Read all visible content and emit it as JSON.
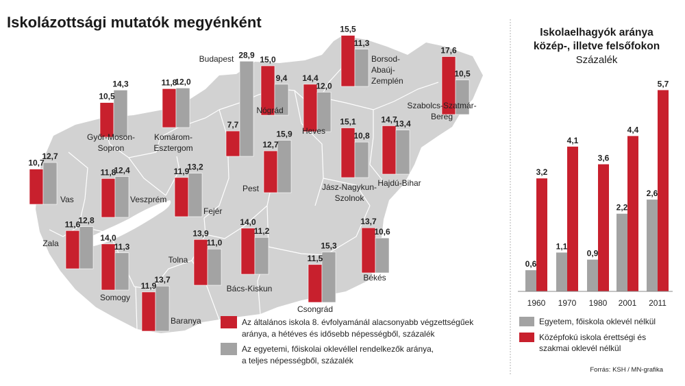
{
  "title": "Iskolázottsági mutatók megyénként",
  "colors": {
    "red": "#c8202d",
    "gray": "#a3a3a3",
    "map": "#d2d2d2",
    "border": "#ffffff"
  },
  "map_legend": {
    "red_line1": "Az általános iskola 8. évfolyamánál alacsonyabb végzettségűek",
    "red_line2": "aránya, a hétéves és idősebb népességből, százalék",
    "gray_line1": "Az egyetemi, főiskolai oklevéllel rendelkezők aránya,",
    "gray_line2": "a teljes népességből, százalék"
  },
  "chart_data": [
    {
      "type": "bar",
      "series_meaning": [
        "red: 8. évfolyamnál alacsonyabb végzettségűek aránya (%)",
        "gray: egyetemi, főiskolai oklevéllel rendelkezők aránya (%)"
      ],
      "counties": [
        {
          "name_lines": [
            "Győr-Moson-",
            "Sopron"
          ],
          "red": 10.5,
          "gray": 14.3,
          "red_label": "10,5",
          "gray_label": "14,3"
        },
        {
          "name_lines": [
            "Komárom-",
            "Esztergom"
          ],
          "red": 11.8,
          "gray": 12.0,
          "red_label": "11,8",
          "gray_label": "12,0"
        },
        {
          "name_lines": [
            "Budapest"
          ],
          "red": 7.7,
          "gray": 28.9,
          "red_label": "7,7",
          "gray_label": "28,9"
        },
        {
          "name_lines": [
            "Nógrád"
          ],
          "red": 15.0,
          "gray": 9.4,
          "red_label": "15,0",
          "gray_label": "9,4"
        },
        {
          "name_lines": [
            "Heves"
          ],
          "red": 14.4,
          "gray": 12.0,
          "red_label": "14,4",
          "gray_label": "12,0"
        },
        {
          "name_lines": [
            "Borsod-",
            "Abaúj-",
            "Zemplén"
          ],
          "red": 15.5,
          "gray": 11.3,
          "red_label": "15,5",
          "gray_label": "11,3"
        },
        {
          "name_lines": [
            "Szabolcs-Szatmár-",
            "Bereg"
          ],
          "red": 17.6,
          "gray": 10.5,
          "red_label": "17,6",
          "gray_label": "10,5"
        },
        {
          "name_lines": [
            "Vas"
          ],
          "red": 10.7,
          "gray": 12.7,
          "red_label": "10,7",
          "gray_label": "12,7"
        },
        {
          "name_lines": [
            "Veszprém"
          ],
          "red": 11.8,
          "gray": 12.4,
          "red_label": "11,8",
          "gray_label": "12,4"
        },
        {
          "name_lines": [
            "Fejér"
          ],
          "red": 11.9,
          "gray": 13.2,
          "red_label": "11,9",
          "gray_label": "13,2"
        },
        {
          "name_lines": [
            "Pest"
          ],
          "red": 12.7,
          "gray": 15.9,
          "red_label": "12,7",
          "gray_label": "15,9"
        },
        {
          "name_lines": [
            "Jász-Nagykun-",
            "Szolnok"
          ],
          "red": 15.1,
          "gray": 10.8,
          "red_label": "15,1",
          "gray_label": "10,8"
        },
        {
          "name_lines": [
            "Hajdú-Bihar"
          ],
          "red": 14.7,
          "gray": 13.4,
          "red_label": "14,7",
          "gray_label": "13,4"
        },
        {
          "name_lines": [
            "Zala"
          ],
          "red": 11.6,
          "gray": 12.8,
          "red_label": "11,6",
          "gray_label": "12,8"
        },
        {
          "name_lines": [
            "Somogy"
          ],
          "red": 14.0,
          "gray": 11.3,
          "red_label": "14,0",
          "gray_label": "11,3"
        },
        {
          "name_lines": [
            "Tolna"
          ],
          "red": 13.9,
          "gray": 11.0,
          "red_label": "13,9",
          "gray_label": "11,0"
        },
        {
          "name_lines": [
            "Bács-Kiskun"
          ],
          "red": 14.0,
          "gray": 11.2,
          "red_label": "14,0",
          "gray_label": "11,2"
        },
        {
          "name_lines": [
            "Csongrád"
          ],
          "red": 11.5,
          "gray": 15.3,
          "red_label": "11,5",
          "gray_label": "15,3"
        },
        {
          "name_lines": [
            "Békés"
          ],
          "red": 13.7,
          "gray": 10.6,
          "red_label": "13,7",
          "gray_label": "10,6"
        },
        {
          "name_lines": [
            "Baranya"
          ],
          "red": 11.9,
          "gray": 13.7,
          "red_label": "11,9",
          "gray_label": "13,7"
        }
      ]
    },
    {
      "type": "bar",
      "title_lines": [
        "Iskolaelhagyók aránya",
        "közép-, illetve felsőfokon"
      ],
      "subtitle": "Százalék",
      "categories": [
        "1960",
        "1970",
        "1980",
        "2001",
        "2011"
      ],
      "series": [
        {
          "name": "Egyetem, főiskola oklevél nélkül",
          "color": "#a3a3a3",
          "values": [
            0.6,
            1.1,
            0.9,
            2.2,
            2.6
          ],
          "labels": [
            "0,6",
            "1,1",
            "0,9",
            "2,2",
            "2,6"
          ]
        },
        {
          "name": "Középfokú iskola érettségi és szakmai oklevél nélkül",
          "color": "#c8202d",
          "values": [
            3.2,
            4.1,
            3.6,
            4.4,
            5.7
          ],
          "labels": [
            "3,2",
            "4,1",
            "3,6",
            "4,4",
            "5,7"
          ]
        }
      ],
      "legend_lines": [
        [
          "Egyetem, főiskola oklevél nélkül"
        ],
        [
          "Középfokú iskola érettségi és",
          "szakmai oklevél nélkül"
        ]
      ]
    }
  ],
  "source": "Forrás: KSH / MN-grafika"
}
